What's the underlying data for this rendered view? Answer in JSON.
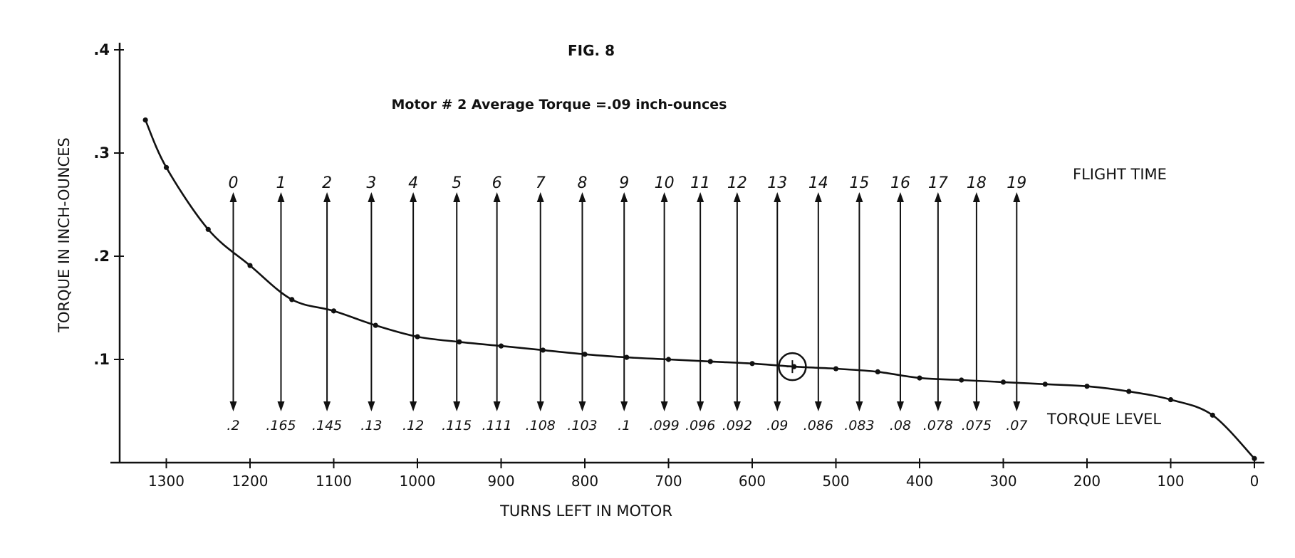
{
  "chart_data": {
    "type": "line",
    "title": "FIG. 8",
    "subtitle": "Motor # 2  Average Torque =.09 inch-ounces",
    "xlabel": "TURNS LEFT IN MOTOR",
    "ylabel": "TORQUE IN INCH-OUNCES",
    "x_reversed": true,
    "xlim": [
      1350,
      0
    ],
    "ylim": [
      0,
      0.4
    ],
    "x_ticks": [
      1300,
      1200,
      1100,
      1000,
      900,
      800,
      700,
      600,
      500,
      400,
      300,
      200,
      100,
      0
    ],
    "x_tick_labels": [
      "1300",
      "1200",
      "1100",
      "1000",
      "900",
      "800",
      "700",
      "600",
      "500",
      "400",
      "300",
      "200",
      "100",
      "0"
    ],
    "y_ticks": [
      0.1,
      0.2,
      0.3,
      0.4
    ],
    "y_tick_labels": [
      ".1",
      ".2",
      ".3",
      ".4"
    ],
    "grid": false,
    "series": [
      {
        "x": [
          1325,
          1300,
          1250,
          1200,
          1150,
          1100,
          1050,
          1000,
          950,
          900,
          850,
          800,
          750,
          700,
          650,
          600,
          550,
          500,
          450,
          400,
          350,
          300,
          250,
          200,
          150,
          100,
          50,
          0
        ],
        "y": [
          0.332,
          0.286,
          0.226,
          0.191,
          0.158,
          0.147,
          0.133,
          0.122,
          0.117,
          0.113,
          0.109,
          0.105,
          0.102,
          0.1,
          0.098,
          0.096,
          0.093,
          0.091,
          0.088,
          0.082,
          0.08,
          0.078,
          0.076,
          0.074,
          0.069,
          0.061,
          0.046,
          0.004
        ]
      }
    ],
    "flight_time": {
      "label": "FLIGHT TIME",
      "x": [
        1220,
        1163,
        1108,
        1055,
        1005,
        953,
        905,
        853,
        803,
        753,
        705,
        662,
        618,
        570,
        521,
        472,
        423,
        378,
        332,
        284
      ],
      "labels": [
        "0",
        "1",
        "2",
        "3",
        "4",
        "5",
        "6",
        "7",
        "8",
        "9",
        "10",
        "11",
        "12",
        "13",
        "14",
        "15",
        "16",
        "17",
        "18",
        "19"
      ]
    },
    "torque_level": {
      "label": "TORQUE LEVEL",
      "labels": [
        ".2",
        ".165",
        ".145",
        ".13",
        ".12",
        ".115",
        ".111",
        ".108",
        ".103",
        ".1",
        ".099",
        ".096",
        ".092",
        ".09",
        ".086",
        ".083",
        ".08",
        ".078",
        ".075",
        ".07"
      ]
    },
    "marker": {
      "x": 552,
      "y": 0.093,
      "note": "circled average torque point"
    }
  }
}
